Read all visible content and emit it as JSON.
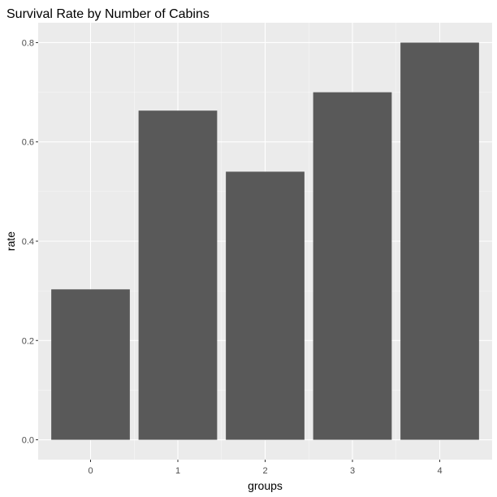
{
  "chart_data": {
    "type": "bar",
    "title": "Survival Rate by Number of Cabins",
    "xlabel": "groups",
    "ylabel": "rate",
    "categories": [
      "0",
      "1",
      "2",
      "3",
      "4"
    ],
    "values": [
      0.303,
      0.663,
      0.54,
      0.7,
      0.8
    ],
    "ylim": [
      -0.04,
      0.84
    ],
    "yticks": [
      0.0,
      0.2,
      0.4,
      0.6,
      0.8
    ],
    "ytick_labels": [
      "0.0",
      "0.2",
      "0.4",
      "0.6",
      "0.8"
    ],
    "grid": true,
    "colors": {
      "panel": "#ebebeb",
      "grid_major": "#ffffff",
      "bar": "#595959",
      "tick": "#333333"
    }
  }
}
